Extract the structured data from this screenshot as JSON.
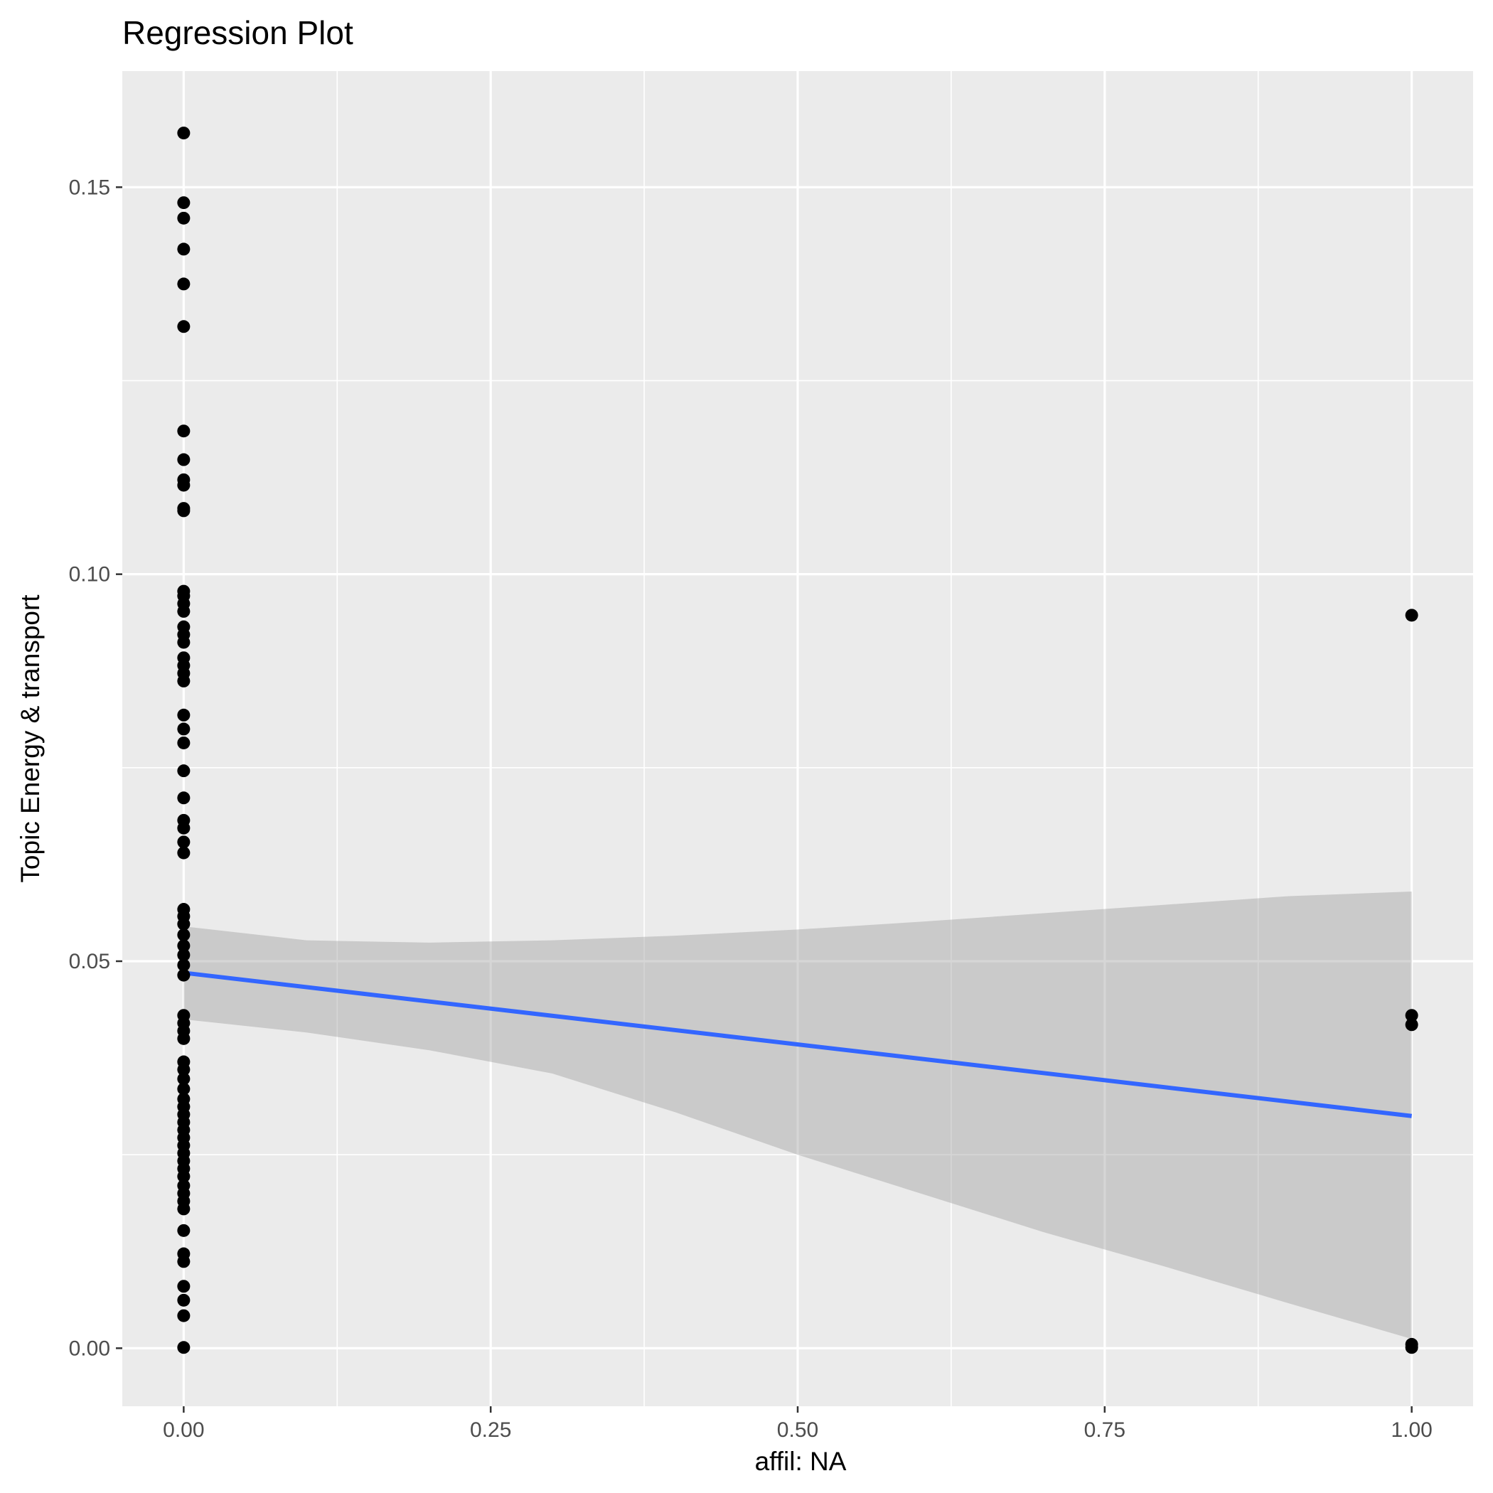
{
  "chart_data": {
    "type": "scatter",
    "title": "Regression Plot",
    "xlabel": "affil: NA",
    "ylabel": "Topic Energy & transport",
    "xlim": [
      -0.05,
      1.05
    ],
    "ylim": [
      -0.0075,
      0.165
    ],
    "grid": true,
    "legend": "none",
    "x_ticks": [
      {
        "value": 0.0,
        "label": "0.00"
      },
      {
        "value": 0.25,
        "label": "0.25"
      },
      {
        "value": 0.5,
        "label": "0.50"
      },
      {
        "value": 0.75,
        "label": "0.75"
      },
      {
        "value": 1.0,
        "label": "1.00"
      }
    ],
    "y_ticks": [
      {
        "value": 0.0,
        "label": "0.00"
      },
      {
        "value": 0.05,
        "label": "0.05"
      },
      {
        "value": 0.1,
        "label": "0.10"
      },
      {
        "value": 0.15,
        "label": "0.15"
      }
    ],
    "points": {
      "color": "#000000",
      "data": [
        [
          0,
          0.157
        ],
        [
          0,
          0.148
        ],
        [
          0,
          0.146
        ],
        [
          0,
          0.142
        ],
        [
          0,
          0.1375
        ],
        [
          0,
          0.132
        ],
        [
          0,
          0.1185
        ],
        [
          0,
          0.1148
        ],
        [
          0,
          0.1122
        ],
        [
          0,
          0.1115
        ],
        [
          0,
          0.1085
        ],
        [
          0,
          0.1082
        ],
        [
          0,
          0.0978
        ],
        [
          0,
          0.0972
        ],
        [
          0,
          0.0962
        ],
        [
          0,
          0.0952
        ],
        [
          0,
          0.0932
        ],
        [
          0,
          0.0922
        ],
        [
          0,
          0.0912
        ],
        [
          0,
          0.0892
        ],
        [
          0,
          0.0882
        ],
        [
          0,
          0.0872
        ],
        [
          0,
          0.0862
        ],
        [
          0,
          0.0818
        ],
        [
          0,
          0.08
        ],
        [
          0,
          0.0782
        ],
        [
          0,
          0.0746
        ],
        [
          0,
          0.0711
        ],
        [
          0,
          0.0682
        ],
        [
          0,
          0.0672
        ],
        [
          0,
          0.0654
        ],
        [
          0,
          0.064
        ],
        [
          0,
          0.0567
        ],
        [
          0,
          0.0558
        ],
        [
          0,
          0.0548
        ],
        [
          0,
          0.0534
        ],
        [
          0,
          0.052
        ],
        [
          0,
          0.0508
        ],
        [
          0,
          0.0495
        ],
        [
          0,
          0.0482
        ],
        [
          0,
          0.043
        ],
        [
          0,
          0.042
        ],
        [
          0,
          0.041
        ],
        [
          0,
          0.04
        ],
        [
          0,
          0.037
        ],
        [
          0,
          0.036
        ],
        [
          0,
          0.0348
        ],
        [
          0,
          0.0335
        ],
        [
          0,
          0.0322
        ],
        [
          0,
          0.0312
        ],
        [
          0,
          0.0302
        ],
        [
          0,
          0.0292
        ],
        [
          0,
          0.0282
        ],
        [
          0,
          0.0272
        ],
        [
          0,
          0.0262
        ],
        [
          0,
          0.0252
        ],
        [
          0,
          0.0242
        ],
        [
          0,
          0.0232
        ],
        [
          0,
          0.0222
        ],
        [
          0,
          0.021
        ],
        [
          0,
          0.02
        ],
        [
          0,
          0.019
        ],
        [
          0,
          0.018
        ],
        [
          0,
          0.0152
        ],
        [
          0,
          0.0122
        ],
        [
          0,
          0.0112
        ],
        [
          0,
          0.008
        ],
        [
          0,
          0.0062
        ],
        [
          0,
          0.0042
        ],
        [
          0,
          0.0001
        ],
        [
          1,
          0.0947
        ],
        [
          1,
          0.043
        ],
        [
          1,
          0.0418
        ],
        [
          1,
          0.0005
        ],
        [
          1,
          0.0001
        ]
      ]
    },
    "regression_line": {
      "color": "#3366FF",
      "x": [
        0,
        1
      ],
      "y": [
        0.0485,
        0.03
      ]
    },
    "confidence_band": {
      "color": "#999999",
      "x": [
        0.0,
        0.1,
        0.2,
        0.3,
        0.4,
        0.5,
        0.6,
        0.7,
        0.8,
        0.9,
        1.0
      ],
      "upper": [
        0.0545,
        0.0527,
        0.0524,
        0.0527,
        0.0533,
        0.0541,
        0.0551,
        0.0562,
        0.0573,
        0.0584,
        0.059
      ],
      "lower": [
        0.0425,
        0.0408,
        0.0385,
        0.0355,
        0.0305,
        0.025,
        0.02,
        0.015,
        0.0105,
        0.0058,
        0.0012
      ]
    },
    "colors": {
      "panel_background": "#EBEBEB",
      "gridline": "#FFFFFF",
      "tick_text": "#4D4D4D"
    }
  }
}
